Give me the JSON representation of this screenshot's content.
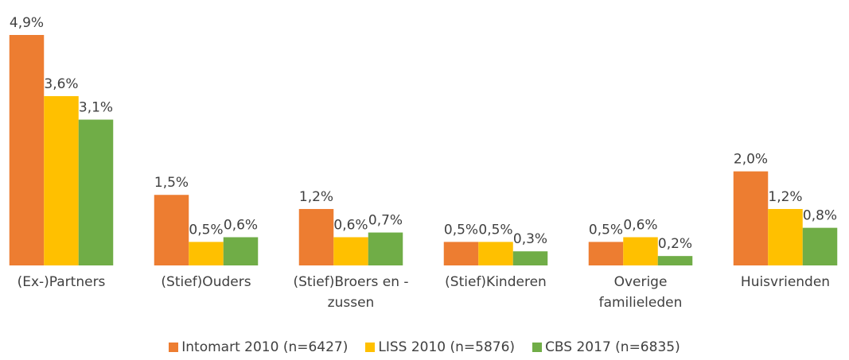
{
  "chart_data": {
    "type": "bar",
    "categories": [
      "(Ex-)Partners",
      "(Stief)Ouders",
      "(Stief)Broers en - zussen",
      "(Stief)Kinderen",
      "Overige familieleden",
      "Huisvrienden"
    ],
    "series": [
      {
        "name": "Intomart 2010 (n=6427)",
        "color": "#ED7D31",
        "values": [
          4.9,
          1.5,
          1.2,
          0.5,
          0.5,
          2.0
        ],
        "value_labels": [
          "4,9%",
          "1,5%",
          "1,2%",
          "0,5%",
          "0,5%",
          "2,0%"
        ]
      },
      {
        "name": "LISS 2010 (n=5876)",
        "color": "#FFC000",
        "values": [
          3.6,
          0.5,
          0.6,
          0.5,
          0.6,
          1.2
        ],
        "value_labels": [
          "3,6%",
          "0,5%",
          "0,6%",
          "0,5%",
          "0,6%",
          "1,2%"
        ]
      },
      {
        "name": "CBS 2017 (n=6835)",
        "color": "#70AD47",
        "values": [
          3.1,
          0.6,
          0.7,
          0.3,
          0.2,
          0.8
        ],
        "value_labels": [
          "3,1%",
          "0,6%",
          "0,7%",
          "0,3%",
          "0,2%",
          "0,8%"
        ]
      }
    ]
  }
}
